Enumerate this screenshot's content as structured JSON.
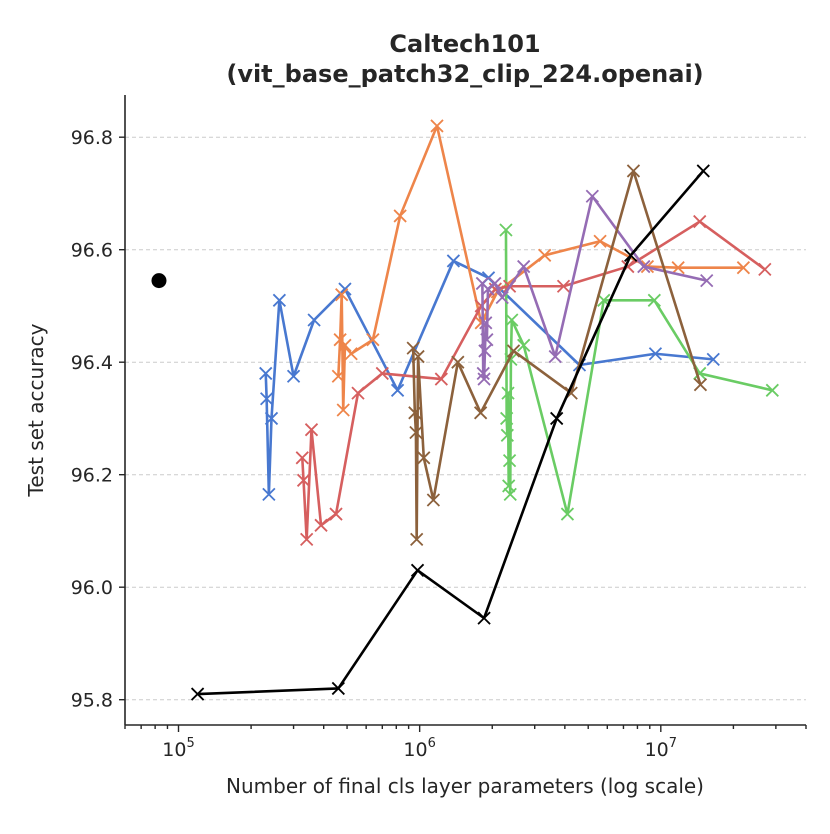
{
  "chart_data": {
    "type": "line",
    "title_line1": "Caltech101",
    "title_line2": "(vit_base_patch32_clip_224.openai)",
    "xlabel": "Number of final cls layer parameters (log scale)",
    "ylabel": "Test set accuracy",
    "x_scale": "log",
    "xlim": [
      60000,
      40000000
    ],
    "ylim": [
      95.755,
      96.875
    ],
    "y_ticks": [
      95.8,
      96.0,
      96.2,
      96.4,
      96.6,
      96.8
    ],
    "y_tick_labels": [
      "95.8",
      "96.0",
      "96.2",
      "96.4",
      "96.6",
      "96.8"
    ],
    "x_ticks": [
      100000,
      1000000,
      10000000
    ],
    "x_tick_labels": [
      {
        "base": "10",
        "exp": "5"
      },
      {
        "base": "10",
        "exp": "6"
      },
      {
        "base": "10",
        "exp": "7"
      }
    ],
    "grid": "horizontal dashed",
    "reference_point": {
      "x": 83000,
      "y": 96.545,
      "color": "#000000"
    },
    "series": [
      {
        "color": "#4878d0",
        "marker": "x",
        "points": [
          [
            230000,
            96.38
          ],
          [
            232000,
            96.335
          ],
          [
            237000,
            96.165
          ],
          [
            243000,
            96.3
          ],
          [
            262000,
            96.51
          ],
          [
            300000,
            96.375
          ],
          [
            365000,
            96.475
          ],
          [
            490000,
            96.53
          ],
          [
            810000,
            96.35
          ],
          [
            1380000,
            96.58
          ],
          [
            1930000,
            96.55
          ],
          [
            4600000,
            96.395
          ],
          [
            9500000,
            96.415
          ],
          [
            16500000,
            96.405
          ]
        ]
      },
      {
        "color": "#ee854a",
        "marker": "x",
        "points": [
          [
            460000,
            96.375
          ],
          [
            468000,
            96.44
          ],
          [
            475000,
            96.52
          ],
          [
            482000,
            96.315
          ],
          [
            490000,
            96.43
          ],
          [
            520000,
            96.415
          ],
          [
            640000,
            96.44
          ],
          [
            830000,
            96.66
          ],
          [
            1180000,
            96.82
          ],
          [
            1800000,
            96.47
          ],
          [
            2100000,
            96.525
          ],
          [
            3300000,
            96.59
          ],
          [
            5600000,
            96.615
          ],
          [
            8800000,
            96.57
          ],
          [
            11800000,
            96.568
          ],
          [
            22000000,
            96.568
          ]
        ]
      },
      {
        "color": "#6acc64",
        "marker": "x",
        "points": [
          [
            2280000,
            96.635
          ],
          [
            2295000,
            96.3
          ],
          [
            2310000,
            96.27
          ],
          [
            2325000,
            96.345
          ],
          [
            2340000,
            96.18
          ],
          [
            2360000,
            96.225
          ],
          [
            2375000,
            96.165
          ],
          [
            2390000,
            96.405
          ],
          [
            2410000,
            96.475
          ],
          [
            2700000,
            96.43
          ],
          [
            4100000,
            96.13
          ],
          [
            5800000,
            96.51
          ],
          [
            9400000,
            96.51
          ],
          [
            14500000,
            96.38
          ],
          [
            29000000,
            96.35
          ]
        ]
      },
      {
        "color": "#d65f5f",
        "marker": "x",
        "points": [
          [
            326000,
            96.23
          ],
          [
            330000,
            96.19
          ],
          [
            340000,
            96.085
          ],
          [
            356000,
            96.28
          ],
          [
            390000,
            96.11
          ],
          [
            450000,
            96.13
          ],
          [
            555000,
            96.345
          ],
          [
            700000,
            96.38
          ],
          [
            1230000,
            96.37
          ],
          [
            1800000,
            96.5
          ],
          [
            2060000,
            96.53
          ],
          [
            2360000,
            96.535
          ],
          [
            3950000,
            96.535
          ],
          [
            7300000,
            96.57
          ],
          [
            14500000,
            96.65
          ],
          [
            27000000,
            96.565
          ]
        ]
      },
      {
        "color": "#956cb4",
        "marker": "x",
        "points": [
          [
            1820000,
            96.54
          ],
          [
            1835000,
            96.38
          ],
          [
            1850000,
            96.37
          ],
          [
            1865000,
            96.42
          ],
          [
            1880000,
            96.47
          ],
          [
            1900000,
            96.44
          ],
          [
            1920000,
            96.53
          ],
          [
            2050000,
            96.54
          ],
          [
            2200000,
            96.515
          ],
          [
            2700000,
            96.57
          ],
          [
            3650000,
            96.41
          ],
          [
            5200000,
            96.695
          ],
          [
            8500000,
            96.57
          ],
          [
            15500000,
            96.545
          ]
        ]
      },
      {
        "color": "#8c613c",
        "marker": "x",
        "points": [
          [
            940000,
            96.425
          ],
          [
            955000,
            96.31
          ],
          [
            965000,
            96.275
          ],
          [
            972000,
            96.085
          ],
          [
            985000,
            96.41
          ],
          [
            1040000,
            96.23
          ],
          [
            1140000,
            96.155
          ],
          [
            1440000,
            96.4
          ],
          [
            1790000,
            96.31
          ],
          [
            2450000,
            96.42
          ],
          [
            4250000,
            96.345
          ],
          [
            7700000,
            96.74
          ],
          [
            14600000,
            96.36
          ]
        ]
      },
      {
        "color": "#000000",
        "marker": "x",
        "points": [
          [
            120000,
            95.81
          ],
          [
            460000,
            95.82
          ],
          [
            980000,
            96.03
          ],
          [
            1850000,
            95.945
          ],
          [
            3700000,
            96.3
          ],
          [
            7500000,
            96.59
          ],
          [
            15000000,
            96.74
          ]
        ]
      }
    ]
  }
}
